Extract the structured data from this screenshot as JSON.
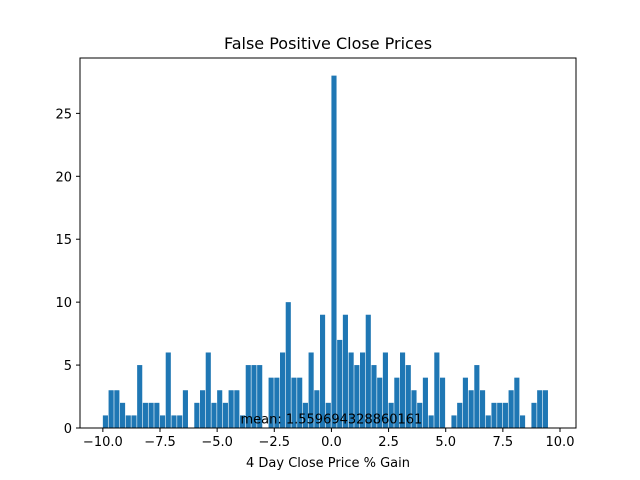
{
  "chart_data": {
    "type": "bar",
    "title": "False Positive Close Prices",
    "xlabel": "4 Day Close Price % Gain",
    "ylabel": "",
    "xlim": [
      -11.0,
      10.7
    ],
    "ylim": [
      0,
      29.4
    ],
    "x_ticks": [
      -10.0,
      -7.5,
      -5.0,
      -2.5,
      0.0,
      2.5,
      5.0,
      7.5,
      10.0
    ],
    "x_tick_labels": [
      "−10.0",
      "−7.5",
      "−5.0",
      "−2.5",
      "0.0",
      "2.5",
      "5.0",
      "7.5",
      "10.0"
    ],
    "y_ticks": [
      0,
      5,
      10,
      15,
      20,
      25
    ],
    "y_tick_labels": [
      "0",
      "5",
      "10",
      "15",
      "20",
      "25"
    ],
    "bin_width": 0.25,
    "bar_color": "#1f77b4",
    "bin_left": [
      -10.0,
      -9.75,
      -9.5,
      -9.25,
      -9.0,
      -8.75,
      -8.5,
      -8.25,
      -8.0,
      -7.75,
      -7.5,
      -7.25,
      -7.0,
      -6.75,
      -6.5,
      -6.25,
      -6.0,
      -5.75,
      -5.5,
      -5.25,
      -5.0,
      -4.75,
      -4.5,
      -4.25,
      -4.0,
      -3.75,
      -3.5,
      -3.25,
      -3.0,
      -2.75,
      -2.5,
      -2.25,
      -2.0,
      -1.75,
      -1.5,
      -1.25,
      -1.0,
      -0.75,
      -0.5,
      -0.25,
      0.0,
      0.25,
      0.5,
      0.75,
      1.0,
      1.25,
      1.5,
      1.75,
      2.0,
      2.25,
      2.5,
      2.75,
      3.0,
      3.25,
      3.5,
      3.75,
      4.0,
      4.25,
      4.5,
      4.75,
      5.0,
      5.25,
      5.5,
      5.75,
      6.0,
      6.25,
      6.5,
      6.75,
      7.0,
      7.25,
      7.5,
      7.75,
      8.0,
      8.25,
      8.5,
      8.75,
      9.0,
      9.25
    ],
    "values": [
      1,
      3,
      3,
      2,
      1,
      1,
      5,
      2,
      2,
      2,
      1,
      6,
      1,
      1,
      3,
      0,
      2,
      3,
      6,
      2,
      3,
      2,
      3,
      3,
      1,
      5,
      5,
      5,
      0,
      4,
      4,
      6,
      10,
      4,
      4,
      2,
      6,
      3,
      9,
      2,
      28,
      7,
      9,
      6,
      5,
      6,
      9,
      5,
      4,
      6,
      2,
      4,
      6,
      5,
      3,
      2,
      4,
      1,
      6,
      4,
      0,
      1,
      2,
      4,
      3,
      5,
      3,
      1,
      2,
      2,
      2,
      3,
      4,
      1,
      0,
      2,
      3,
      3
    ],
    "annotations": [
      {
        "text": "mean: 1.559694328860161",
        "x": 0.0,
        "y": 0.35
      }
    ]
  }
}
